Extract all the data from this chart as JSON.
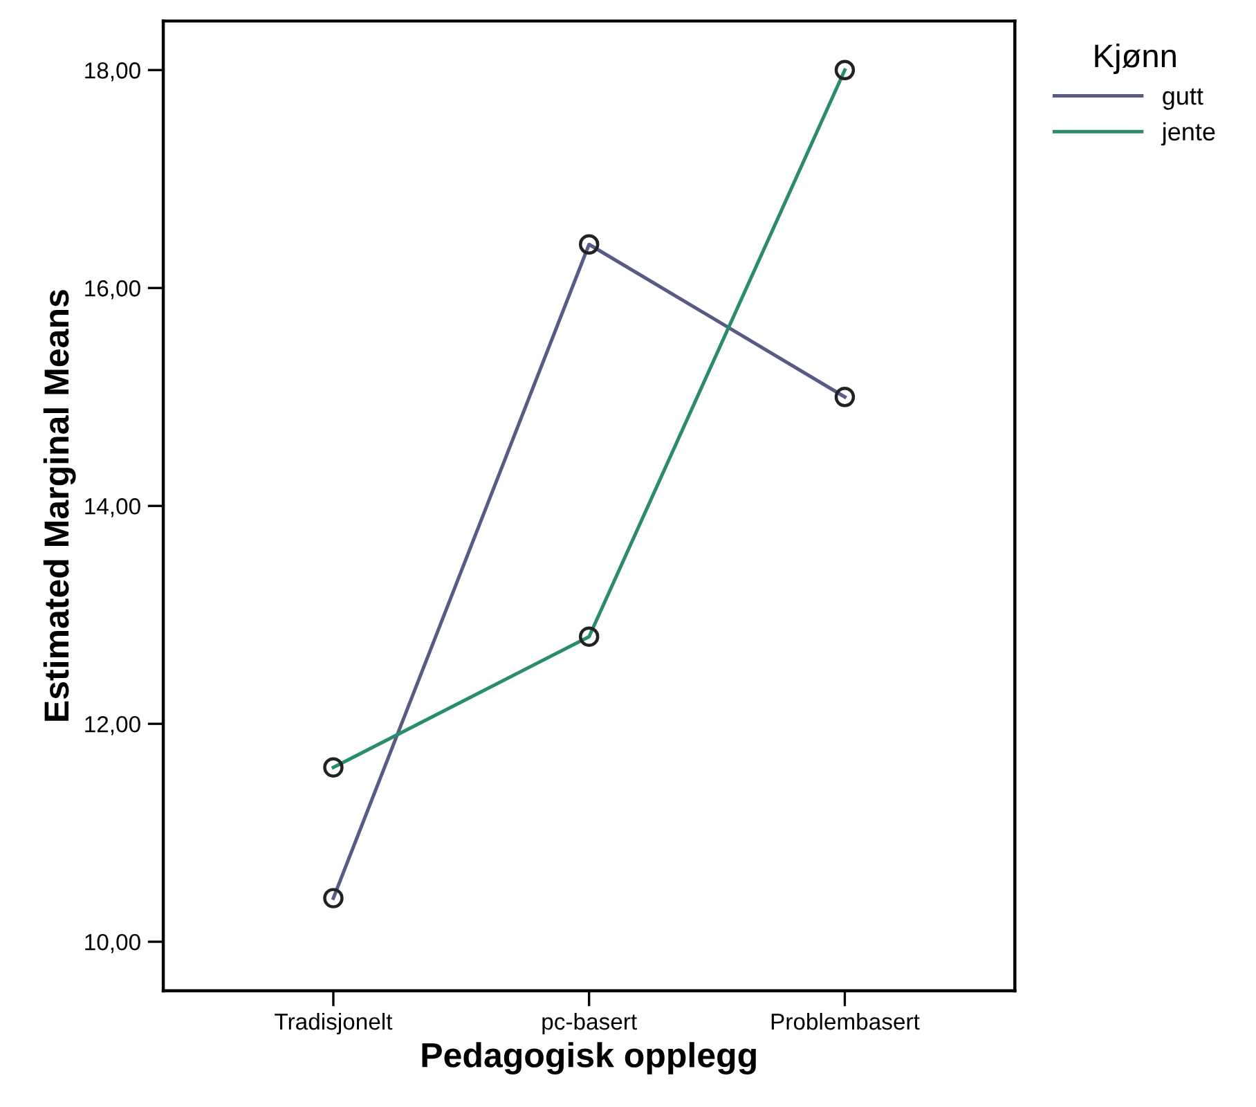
{
  "chart_data": {
    "type": "line",
    "xlabel": "Pedagogisk opplegg",
    "ylabel": "Estimated Marginal Means",
    "legend_title": "Kjønn",
    "categories": [
      "Tradisjonelt",
      "pc-basert",
      "Problembasert"
    ],
    "series": [
      {
        "name": "gutt",
        "color": "#575b85",
        "values": [
          10.4,
          16.4,
          15.0
        ]
      },
      {
        "name": "jente",
        "color": "#2b8b6f",
        "values": [
          11.6,
          12.8,
          18.0
        ]
      }
    ],
    "ylim": [
      9.55,
      18.45
    ],
    "yticks": [
      {
        "value": 10,
        "label": "10,00"
      },
      {
        "value": 12,
        "label": "12,00"
      },
      {
        "value": 14,
        "label": "14,00"
      },
      {
        "value": 16,
        "label": "16,00"
      },
      {
        "value": 18,
        "label": "18,00"
      }
    ],
    "marker": "circle",
    "legend": "top right",
    "grid": false
  }
}
